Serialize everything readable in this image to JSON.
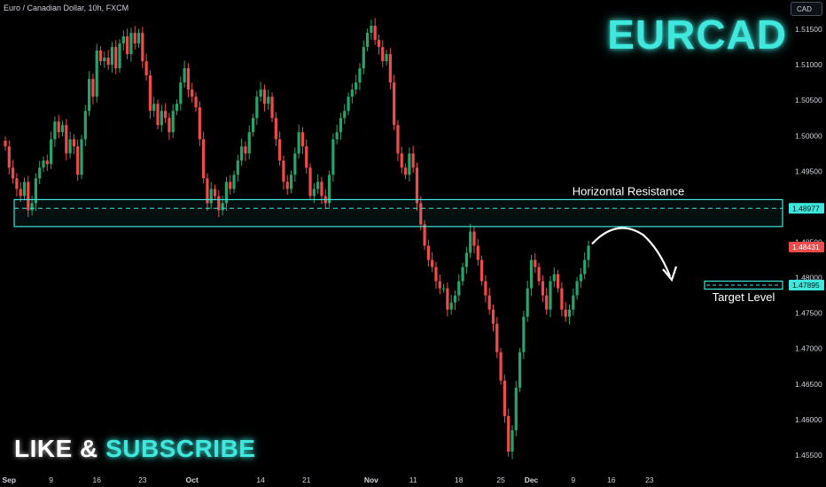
{
  "header": {
    "symbol_line": "Euro / Canadian Dollar, 10h, FXCM",
    "currency": "CAD",
    "brand_title": "EURCAD"
  },
  "promo": {
    "word1": "LIKE & ",
    "word2": "SUBSCRIBE"
  },
  "colors": {
    "background": "#000000",
    "bull": "#27a36b",
    "bear": "#ef4b4b",
    "accent": "#3fe7dc",
    "axis_text": "#cfd3dc"
  },
  "chart_data": {
    "type": "candlestick",
    "title": "",
    "ylim": [
      1.453,
      1.5185
    ],
    "y_ticks": [
      "1.51500",
      "1.51000",
      "1.50500",
      "1.50000",
      "1.49500",
      "1.49000",
      "1.48500",
      "1.48000",
      "1.47500",
      "1.47000",
      "1.46500",
      "1.46000",
      "1.45500"
    ],
    "x_ticks": [
      {
        "label": "Sep",
        "bold": true,
        "index": 1
      },
      {
        "label": "9",
        "bold": false,
        "index": 12
      },
      {
        "label": "16",
        "bold": false,
        "index": 24
      },
      {
        "label": "23",
        "bold": false,
        "index": 36
      },
      {
        "label": "Oct",
        "bold": true,
        "index": 49
      },
      {
        "label": "14",
        "bold": false,
        "index": 67
      },
      {
        "label": "21",
        "bold": false,
        "index": 79
      },
      {
        "label": "Nov",
        "bold": true,
        "index": 96
      },
      {
        "label": "11",
        "bold": false,
        "index": 107
      },
      {
        "label": "18",
        "bold": false,
        "index": 119
      },
      {
        "label": "25",
        "bold": false,
        "index": 130
      },
      {
        "label": "Dec",
        "bold": true,
        "index": 138
      },
      {
        "label": "9",
        "bold": false,
        "index": 149
      },
      {
        "label": "16",
        "bold": false,
        "index": 159
      },
      {
        "label": "23",
        "bold": false,
        "index": 169
      }
    ],
    "closes": [
      1.4985,
      1.4955,
      1.494,
      1.4925,
      1.4915,
      1.4935,
      1.4895,
      1.4905,
      1.494,
      1.4955,
      1.4965,
      1.496,
      1.4995,
      1.502,
      1.5005,
      1.5015,
      1.4975,
      1.4995,
      1.4985,
      1.4945,
      1.4995,
      1.5035,
      1.508,
      1.5055,
      1.512,
      1.5105,
      1.511,
      1.51,
      1.5125,
      1.5095,
      1.513,
      1.514,
      1.5115,
      1.5145,
      1.513,
      1.5145,
      1.5105,
      1.5085,
      1.5035,
      1.5045,
      1.5015,
      1.5035,
      1.5025,
      1.5005,
      1.5035,
      1.5045,
      1.5075,
      1.5095,
      1.5065,
      1.5055,
      1.504,
      1.4995,
      1.494,
      1.4905,
      1.4925,
      1.4915,
      1.4895,
      1.4905,
      1.4935,
      1.4925,
      1.4945,
      1.4965,
      1.4985,
      1.4975,
      1.5005,
      1.5025,
      1.5055,
      1.5065,
      1.5045,
      1.5055,
      1.5025,
      1.4995,
      1.4965,
      1.4935,
      1.4925,
      1.4945,
      1.4975,
      1.5005,
      1.4985,
      1.4955,
      1.4915,
      1.4925,
      1.4935,
      1.4915,
      1.4905,
      1.4945,
      1.4995,
      1.5005,
      1.5025,
      1.5035,
      1.5055,
      1.5065,
      1.5075,
      1.5095,
      1.5125,
      1.5145,
      1.5155,
      1.5135,
      1.5125,
      1.5105,
      1.5115,
      1.5075,
      1.5015,
      1.4975,
      1.4955,
      1.4945,
      1.4975,
      1.4955,
      1.4905,
      1.4875,
      1.4845,
      1.4825,
      1.4815,
      1.4795,
      1.4785,
      1.4785,
      1.4755,
      1.4765,
      1.4775,
      1.4795,
      1.4815,
      1.4835,
      1.4865,
      1.4845,
      1.4825,
      1.4795,
      1.4775,
      1.4755,
      1.4735,
      1.4695,
      1.4655,
      1.4605,
      1.4555,
      1.4585,
      1.4645,
      1.4695,
      1.4745,
      1.4785,
      1.4825,
      1.4815,
      1.4795,
      1.4775,
      1.4755,
      1.4795,
      1.4805,
      1.4785,
      1.4755,
      1.4745,
      1.4755,
      1.4775,
      1.4795,
      1.4805,
      1.4825,
      1.4845
    ],
    "annotations": {
      "resistance_label": "Horizontal Resistance",
      "resistance_price": "1.48977",
      "resistance_zone": [
        1.4872,
        1.491
      ],
      "target_label": "Target Level",
      "target_price": "1.47895",
      "current_price": "1.48431"
    }
  }
}
